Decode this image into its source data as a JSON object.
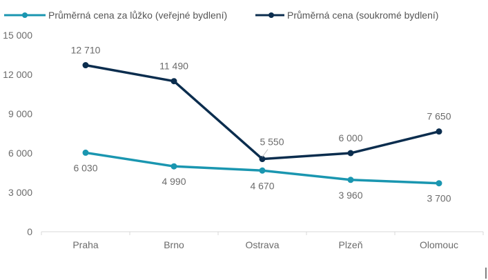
{
  "chart_data": {
    "type": "line",
    "categories": [
      "Praha",
      "Brno",
      "Ostrava",
      "Plzeň",
      "Olomouc"
    ],
    "y_ticks": [
      "0",
      "3 000",
      "6 000",
      "9 000",
      "12 000",
      "15 000"
    ],
    "ylim": [
      0,
      15000
    ],
    "grid": false,
    "legend_position": "top",
    "series": [
      {
        "name": "Průměrná cena za lůžko (veřejné bydlení)",
        "color": "#1A96B0",
        "values": [
          6030,
          4990,
          4670,
          3960,
          3700
        ],
        "labels": [
          "6 030",
          "4 990",
          "4 670",
          "3 960",
          "3 700"
        ]
      },
      {
        "name": "Průměrná cena (soukromé bydlení)",
        "color": "#0B2D4E",
        "values": [
          12710,
          11490,
          5550,
          6000,
          7650
        ],
        "labels": [
          "12 710",
          "11 490",
          "5 550",
          "6 000",
          "7 650"
        ]
      }
    ]
  }
}
